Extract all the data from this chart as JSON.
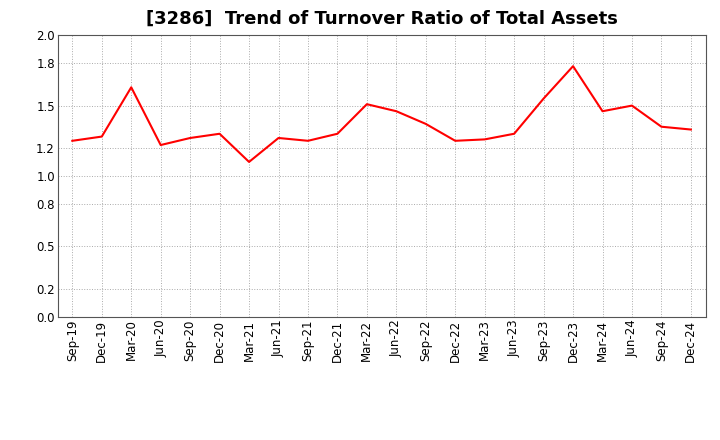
{
  "title": "[3286]  Trend of Turnover Ratio of Total Assets",
  "labels": [
    "Sep-19",
    "Dec-19",
    "Mar-20",
    "Jun-20",
    "Sep-20",
    "Dec-20",
    "Mar-21",
    "Jun-21",
    "Sep-21",
    "Dec-21",
    "Mar-22",
    "Jun-22",
    "Sep-22",
    "Dec-22",
    "Mar-23",
    "Jun-23",
    "Sep-23",
    "Dec-23",
    "Mar-24",
    "Jun-24",
    "Sep-24",
    "Dec-24"
  ],
  "values": [
    1.25,
    1.28,
    1.63,
    1.22,
    1.27,
    1.3,
    1.1,
    1.27,
    1.25,
    1.3,
    1.51,
    1.46,
    1.37,
    1.25,
    1.26,
    1.3,
    1.55,
    1.78,
    1.46,
    1.5,
    1.35,
    1.33
  ],
  "line_color": "#FF0000",
  "line_width": 1.5,
  "ylim": [
    0.0,
    2.0
  ],
  "yticks": [
    0.0,
    0.2,
    0.5,
    0.8,
    1.0,
    1.2,
    1.5,
    1.8,
    2.0
  ],
  "background_color": "#ffffff",
  "grid_color": "#aaaaaa",
  "title_fontsize": 13,
  "tick_fontsize": 8.5
}
